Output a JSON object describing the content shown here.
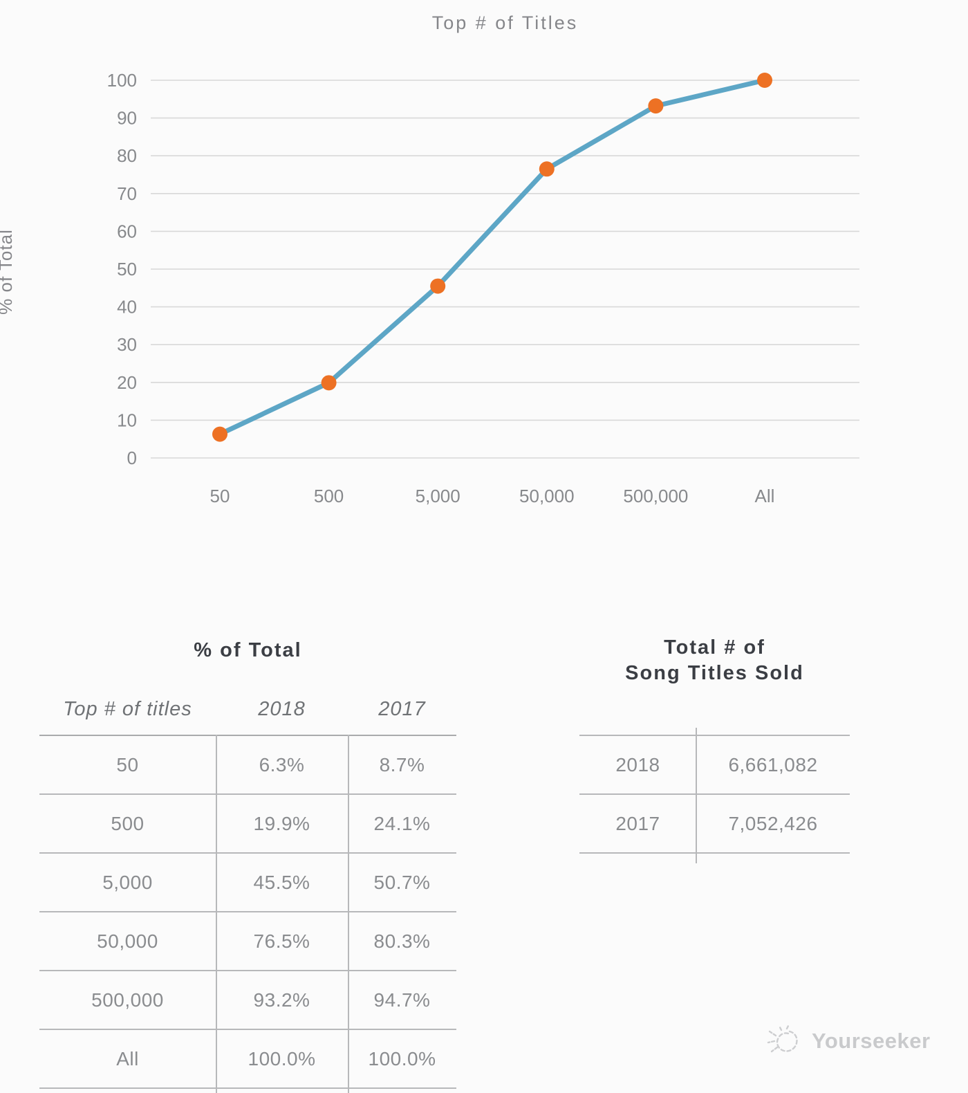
{
  "chart_data": {
    "type": "line",
    "title": "Top # of Titles",
    "xlabel": "",
    "ylabel": "% of Total",
    "categories": [
      "50",
      "500",
      "5,000",
      "50,000",
      "500,000",
      "All"
    ],
    "series": [
      {
        "name": "2018",
        "values": [
          6.3,
          19.9,
          45.5,
          76.5,
          93.2,
          100.0
        ]
      }
    ],
    "ylim": [
      0,
      100
    ],
    "ytick_step": 10,
    "grid": true,
    "legend": "none",
    "line_color": "#5da6c6",
    "marker_color": "#ed7124",
    "grid_color": "#d8d8d8",
    "tick_color": "#87898c"
  },
  "tables": {
    "pct": {
      "heading": "% of Total",
      "columns": [
        "Top # of titles",
        "2018",
        "2017"
      ],
      "rows": [
        {
          "label": "50",
          "y2018": "6.3%",
          "y2017": "8.7%"
        },
        {
          "label": "500",
          "y2018": "19.9%",
          "y2017": "24.1%"
        },
        {
          "label": "5,000",
          "y2018": "45.5%",
          "y2017": "50.7%"
        },
        {
          "label": "50,000",
          "y2018": "76.5%",
          "y2017": "80.3%"
        },
        {
          "label": "500,000",
          "y2018": "93.2%",
          "y2017": "94.7%"
        },
        {
          "label": "All",
          "y2018": "100.0%",
          "y2017": "100.0%"
        }
      ]
    },
    "totals": {
      "heading_line1": "Total # of",
      "heading_line2": "Song Titles Sold",
      "rows": [
        {
          "label": "2018",
          "value": "6,661,082"
        },
        {
          "label": "2017",
          "value": "7,052,426"
        }
      ]
    }
  },
  "footer": {
    "brand": "Yourseeker"
  }
}
